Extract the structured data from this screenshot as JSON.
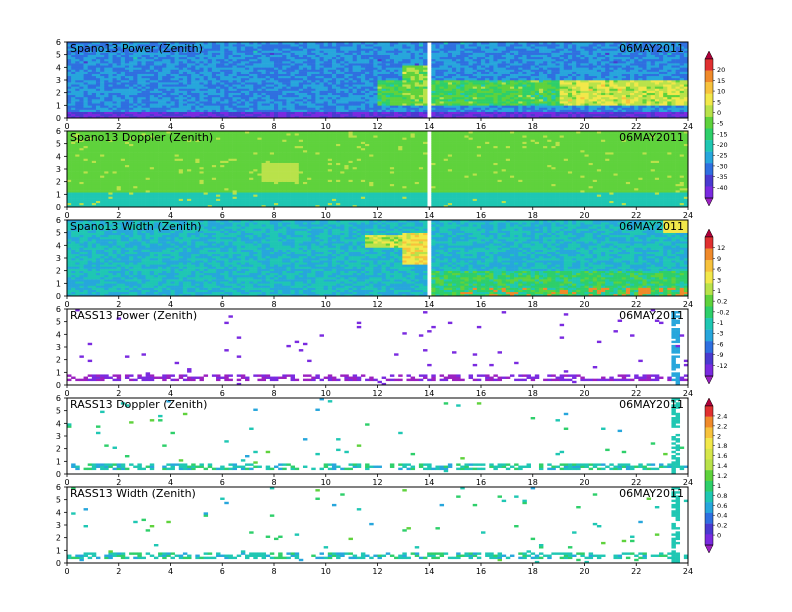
{
  "chart_data": {
    "type": "heatmap",
    "x_ticks": [
      0,
      2,
      4,
      6,
      8,
      10,
      12,
      14,
      16,
      18,
      20,
      22,
      24
    ],
    "y_ticks": [
      0,
      1,
      2,
      3,
      4,
      5,
      6
    ],
    "xlim": [
      0,
      24
    ],
    "ylim": [
      0,
      6
    ],
    "grid": false,
    "panels": [
      {
        "id": "power13",
        "title": "Spano13 Power (Zenith)",
        "date": "06MAY2011",
        "field": "power",
        "density": "dense"
      },
      {
        "id": "doppler13",
        "title": "Spano13 Doppler (Zenith)",
        "date": "06MAY2011",
        "field": "doppler",
        "density": "dense"
      },
      {
        "id": "width13",
        "title": "Spano13 Width (Zenith)",
        "date": "06MAY2011",
        "field": "width",
        "density": "dense"
      },
      {
        "id": "rasspower",
        "title": "RASS13 Power (Zenith)",
        "date": "06MAY2011",
        "field": "rasspower",
        "density": "sparse"
      },
      {
        "id": "rassdoppler",
        "title": "RASS13 Doppler (Zenith)",
        "date": "06MAY2011",
        "field": "rassdoppler",
        "density": "sparse"
      },
      {
        "id": "rasswidth",
        "title": "RASS13 Width (Zenith)",
        "date": "06MAY2011",
        "field": "rasswidth",
        "density": "sparse"
      }
    ],
    "colorbars": [
      {
        "id": "cb-power",
        "labels": [
          "20",
          "15",
          "10",
          "5",
          "0",
          "-5",
          "-15",
          "-20",
          "-25",
          "-30",
          "-35",
          "-40"
        ],
        "colors": [
          "#b0003a",
          "#e03030",
          "#f08a2a",
          "#f7c23c",
          "#f2e84a",
          "#b9e24a",
          "#5fd23c",
          "#2ecf6a",
          "#1fc7b3",
          "#27a6dc",
          "#2f6fe0",
          "#4a3ad0",
          "#7a2ae0",
          "#9b20c0"
        ]
      },
      {
        "id": "cb-width",
        "labels": [
          "12",
          "9",
          "6",
          "3",
          "1",
          "0.2",
          "-0.2",
          "-1",
          "-3",
          "-6",
          "-9",
          "-12"
        ],
        "colors": [
          "#b0003a",
          "#e03030",
          "#f08a2a",
          "#f7c23c",
          "#f2e84a",
          "#b9e24a",
          "#5fd23c",
          "#2ecf6a",
          "#1fc7b3",
          "#27a6dc",
          "#2f6fe0",
          "#4a3ad0",
          "#7a2ae0",
          "#9b20c0"
        ]
      },
      {
        "id": "cb-rass",
        "labels": [
          "2.4",
          "2.2",
          "2",
          "1.8",
          "1.6",
          "1.4",
          "1.2",
          "1",
          "0.8",
          "0.6",
          "0.4",
          "0.2",
          "0"
        ],
        "colors": [
          "#b0003a",
          "#e03030",
          "#f08a2a",
          "#f7c23c",
          "#f2e84a",
          "#d6e64a",
          "#b9e24a",
          "#5fd23c",
          "#2ecf6a",
          "#1fc7b3",
          "#27a6dc",
          "#2f6fe0",
          "#4a3ad0",
          "#7a2ae0",
          "#9b20c0"
        ]
      }
    ]
  }
}
